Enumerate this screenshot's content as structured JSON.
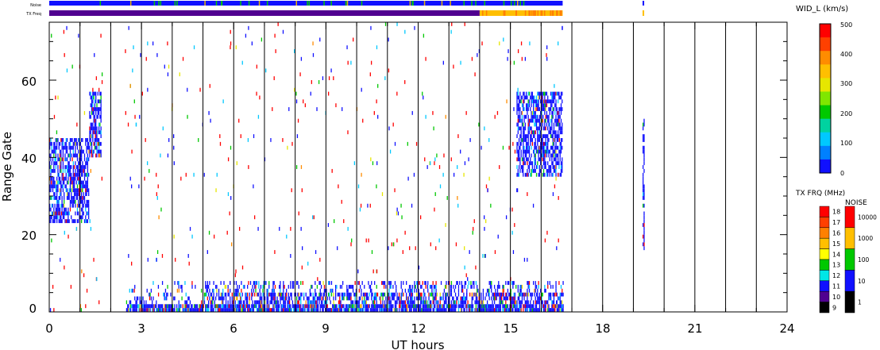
{
  "chart_data": {
    "type": "heatmap",
    "xlabel": "UT hours",
    "ylabel": "Range Gate",
    "x_ticks": [
      "0",
      "3",
      "6",
      "9",
      "12",
      "15",
      "18",
      "21",
      "24"
    ],
    "y_ticks": [
      "0",
      "20",
      "40",
      "60"
    ],
    "xlim": [
      0,
      24
    ],
    "ylim": [
      0,
      75
    ],
    "top_strips": {
      "noise_label": "Noise",
      "txfreq_label": "TX Freq"
    },
    "colorbar_width": {
      "title": "WID_L (km/s)",
      "ticks": [
        "500",
        "400",
        "300",
        "200",
        "100",
        "0"
      ],
      "range": [
        0,
        500
      ],
      "colors": [
        "#1010ff",
        "#00c8ff",
        "#00c800",
        "#e6e600",
        "#ff8c00",
        "#ff0000"
      ]
    },
    "colorbar_txfreq": {
      "title": "TX FRQ (MHz)",
      "ticks": [
        "18",
        "17",
        "16",
        "15",
        "14",
        "13",
        "12",
        "11",
        "10",
        "9"
      ],
      "colors": [
        "#ff0000",
        "#ff4000",
        "#ff8000",
        "#ffbf00",
        "#ffff00",
        "#00c800",
        "#00e6e6",
        "#1010ff",
        "#500090",
        "#000000"
      ]
    },
    "colorbar_noise": {
      "title": "NOISE",
      "ticks": [
        "10000",
        "1000",
        "100",
        "10",
        "1"
      ],
      "colors": [
        "#ff0000",
        "#ffbf00",
        "#00c800",
        "#1010ff",
        "#000000"
      ]
    },
    "scan_boundaries_hours": [
      1,
      2,
      3,
      4,
      5,
      6,
      7,
      8,
      9,
      10,
      11,
      12,
      13,
      14,
      15,
      16,
      17,
      18,
      19,
      20,
      21,
      22,
      23
    ],
    "series": [
      {
        "x_range": [
          0.0,
          1.3
        ],
        "y_range": [
          23,
          45
        ],
        "level": "low"
      },
      {
        "x_range": [
          1.3,
          1.7
        ],
        "y_range": [
          40,
          57
        ],
        "level": "low"
      },
      {
        "x_range": [
          15.2,
          16.7
        ],
        "y_range": [
          35,
          57
        ],
        "level": "low"
      },
      {
        "x_range": [
          2.5,
          16.7
        ],
        "y_range": [
          0,
          8
        ],
        "level": "mixed"
      },
      {
        "x_range": [
          19.3,
          19.35
        ],
        "y_range": [
          16,
          50
        ],
        "level": "low"
      }
    ]
  }
}
